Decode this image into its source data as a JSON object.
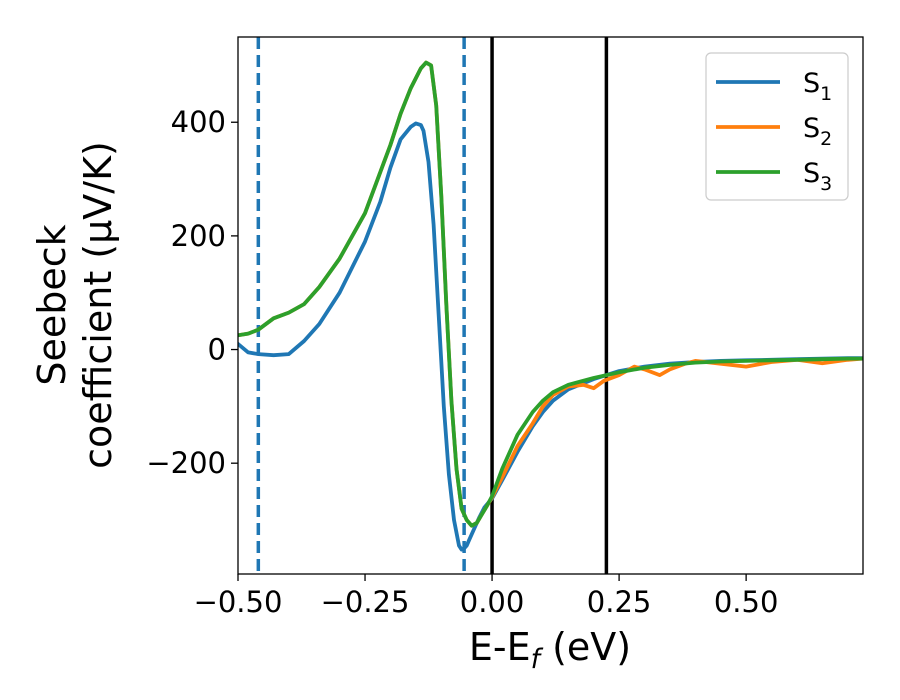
{
  "chart_data": {
    "type": "line",
    "xlabel": "E-E",
    "xlabel_sub": "f",
    "xlabel_unit": " (eV)",
    "ylabel_line1": "Seebeck",
    "ylabel_line2": "coefficient  (μV/K)",
    "xlim": [
      -0.5,
      0.73
    ],
    "ylim": [
      -395,
      550
    ],
    "xticks": [
      -0.5,
      -0.25,
      0.0,
      0.25,
      0.5
    ],
    "xtick_labels": [
      "−0.50",
      "−0.25",
      "0.00",
      "0.25",
      "0.50"
    ],
    "yticks": [
      -200,
      0,
      200,
      400
    ],
    "ytick_labels": [
      "−200",
      "0",
      "200",
      "400"
    ],
    "grid": false,
    "legend_position": "top-right",
    "vlines": [
      {
        "x": -0.46,
        "style": "dashed",
        "color": "#1f77b4"
      },
      {
        "x": -0.055,
        "style": "dashed",
        "color": "#1f77b4"
      },
      {
        "x": 0.0,
        "style": "solid",
        "color": "#000000"
      },
      {
        "x": 0.225,
        "style": "solid",
        "color": "#000000"
      }
    ],
    "series": [
      {
        "name": "S",
        "sub": "1",
        "color": "#1f77b4",
        "x": [
          -0.5,
          -0.48,
          -0.46,
          -0.43,
          -0.4,
          -0.37,
          -0.34,
          -0.3,
          -0.25,
          -0.22,
          -0.2,
          -0.18,
          -0.16,
          -0.15,
          -0.14,
          -0.135,
          -0.125,
          -0.115,
          -0.105,
          -0.095,
          -0.085,
          -0.075,
          -0.065,
          -0.06,
          -0.055,
          -0.05,
          -0.045,
          -0.035,
          -0.025,
          -0.015,
          0.0,
          0.02,
          0.05,
          0.08,
          0.1,
          0.12,
          0.15,
          0.2,
          0.25,
          0.3,
          0.35,
          0.4,
          0.45,
          0.5,
          0.55,
          0.6,
          0.65,
          0.7,
          0.73
        ],
        "y": [
          10,
          -5,
          -8,
          -10,
          -8,
          15,
          45,
          100,
          190,
          260,
          320,
          370,
          392,
          398,
          395,
          385,
          330,
          220,
          60,
          -100,
          -220,
          -300,
          -345,
          -352,
          -350,
          -345,
          -335,
          -315,
          -295,
          -278,
          -262,
          -230,
          -180,
          -135,
          -110,
          -90,
          -70,
          -52,
          -38,
          -30,
          -25,
          -22,
          -20,
          -19,
          -18,
          -17,
          -16,
          -15,
          -15
        ]
      },
      {
        "name": "S",
        "sub": "2",
        "color": "#ff7f0e",
        "x": [
          -0.5,
          -0.48,
          -0.46,
          -0.43,
          -0.4,
          -0.37,
          -0.34,
          -0.3,
          -0.25,
          -0.2,
          -0.18,
          -0.16,
          -0.14,
          -0.13,
          -0.12,
          -0.11,
          -0.1,
          -0.09,
          -0.08,
          -0.07,
          -0.06,
          -0.05,
          -0.04,
          -0.03,
          -0.02,
          -0.01,
          0.0,
          0.02,
          0.05,
          0.08,
          0.1,
          0.12,
          0.15,
          0.18,
          0.2,
          0.22,
          0.25,
          0.28,
          0.3,
          0.33,
          0.35,
          0.38,
          0.4,
          0.45,
          0.5,
          0.55,
          0.6,
          0.65,
          0.7,
          0.73
        ],
        "y": [
          25,
          28,
          35,
          55,
          65,
          80,
          110,
          160,
          240,
          360,
          415,
          460,
          495,
          505,
          500,
          430,
          270,
          80,
          -90,
          -210,
          -280,
          -300,
          -310,
          -305,
          -290,
          -275,
          -260,
          -225,
          -170,
          -130,
          -100,
          -80,
          -65,
          -62,
          -68,
          -55,
          -45,
          -30,
          -35,
          -45,
          -35,
          -25,
          -20,
          -25,
          -30,
          -22,
          -18,
          -24,
          -18,
          -16
        ]
      },
      {
        "name": "S",
        "sub": "3",
        "color": "#2ca02c",
        "x": [
          -0.5,
          -0.48,
          -0.46,
          -0.43,
          -0.4,
          -0.37,
          -0.34,
          -0.3,
          -0.25,
          -0.2,
          -0.18,
          -0.16,
          -0.14,
          -0.13,
          -0.12,
          -0.11,
          -0.1,
          -0.09,
          -0.08,
          -0.07,
          -0.06,
          -0.05,
          -0.04,
          -0.03,
          -0.02,
          -0.01,
          0.0,
          0.02,
          0.05,
          0.08,
          0.1,
          0.12,
          0.15,
          0.2,
          0.25,
          0.3,
          0.35,
          0.4,
          0.45,
          0.5,
          0.55,
          0.6,
          0.65,
          0.7,
          0.73
        ],
        "y": [
          25,
          28,
          35,
          55,
          65,
          80,
          110,
          160,
          240,
          360,
          415,
          460,
          495,
          505,
          500,
          430,
          270,
          80,
          -90,
          -210,
          -280,
          -300,
          -310,
          -305,
          -290,
          -275,
          -258,
          -210,
          -150,
          -110,
          -90,
          -75,
          -62,
          -50,
          -40,
          -32,
          -27,
          -23,
          -21,
          -20,
          -19,
          -18,
          -17,
          -16,
          -16
        ]
      }
    ]
  }
}
